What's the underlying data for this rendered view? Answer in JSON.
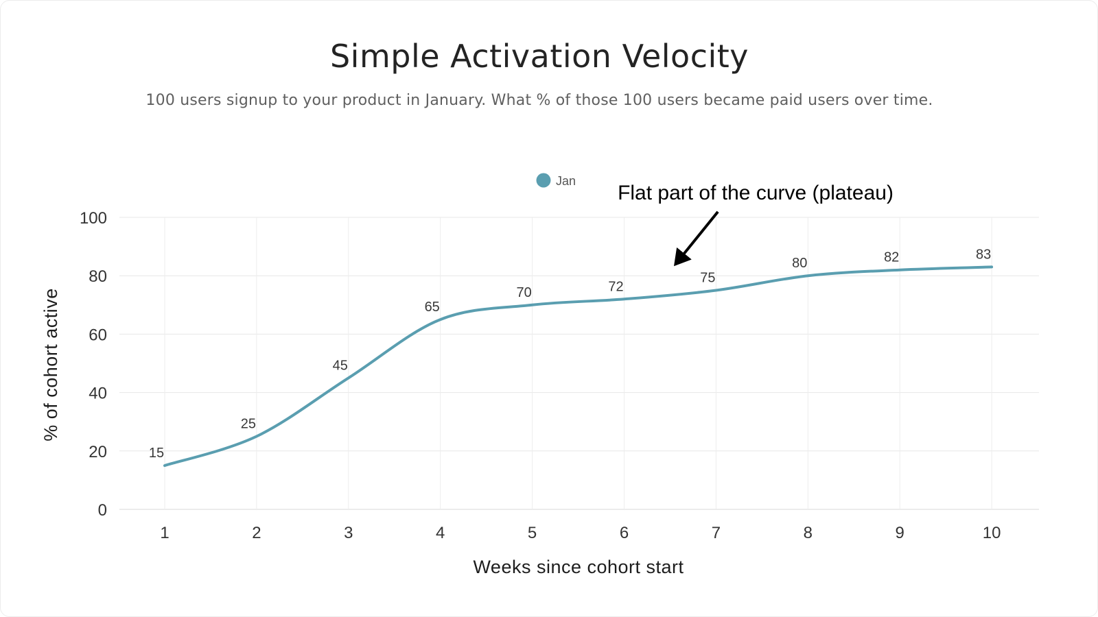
{
  "header": {
    "title": "Simple Activation Velocity",
    "subtitle": "100 users signup to your product in January. What % of those 100 users became paid users over time."
  },
  "chart_data": {
    "type": "line",
    "title": "Simple Activation Velocity",
    "subtitle": "100 users signup to your product in January. What % of those 100 users became paid users over time.",
    "xlabel": "Weeks since cohort start",
    "ylabel": "% of cohort active",
    "x": [
      1,
      2,
      3,
      4,
      5,
      6,
      7,
      8,
      9,
      10
    ],
    "series": [
      {
        "name": "Jan",
        "color": "#5A9EB0",
        "values": [
          15,
          25,
          45,
          65,
          70,
          72,
          75,
          80,
          82,
          83
        ]
      }
    ],
    "yticks": [
      0,
      20,
      40,
      60,
      80,
      100
    ],
    "ylim": [
      0,
      100
    ],
    "grid": true,
    "line_style": "smooth",
    "show_point_labels": true,
    "legend_position": "top-center",
    "annotations": [
      {
        "text": "Flat part of the curve (plateau)",
        "arrow_from": [
          7.02,
          101.9
        ],
        "arrow_to": [
          6.56,
          84.0
        ]
      }
    ]
  }
}
